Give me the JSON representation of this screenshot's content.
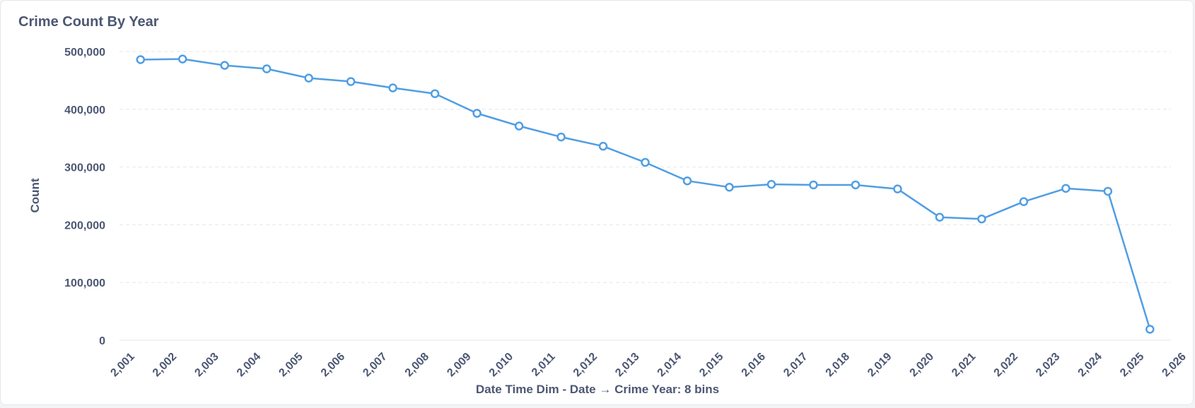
{
  "card": {
    "title": "Crime Count By Year"
  },
  "colors": {
    "series": "#509ee3",
    "grid": "#e4e6ea",
    "text": "#4c5773",
    "point_fill": "#ffffff"
  },
  "chart_data": {
    "type": "line",
    "title": "Crime Count By Year",
    "xlabel": "Date Time Dim - Date → Crime Year: 8 bins",
    "ylabel": "Count",
    "x_tick_labels": [
      "2,001",
      "2,002",
      "2,003",
      "2,004",
      "2,005",
      "2,006",
      "2,007",
      "2,008",
      "2,009",
      "2,010",
      "2,011",
      "2,012",
      "2,013",
      "2,014",
      "2,015",
      "2,016",
      "2,017",
      "2,018",
      "2,019",
      "2,020",
      "2,021",
      "2,022",
      "2,023",
      "2,024",
      "2,025",
      "2,026"
    ],
    "y_ticks": [
      0,
      100000,
      200000,
      300000,
      400000,
      500000
    ],
    "y_tick_labels": [
      "0",
      "100,000",
      "200,000",
      "300,000",
      "400,000",
      "500,000"
    ],
    "ylim": [
      0,
      500000
    ],
    "xlim": [
      2001,
      2026
    ],
    "grid": true,
    "legend": "none",
    "series": [
      {
        "x": [
          2001.5,
          2002.5,
          2003.5,
          2004.5,
          2005.5,
          2006.5,
          2007.5,
          2008.5,
          2009.5,
          2010.5,
          2011.5,
          2012.5,
          2013.5,
          2014.5,
          2015.5,
          2016.5,
          2017.5,
          2018.5,
          2019.5,
          2020.5,
          2021.5,
          2022.5,
          2023.5,
          2024.5,
          2025.5
        ],
        "values": [
          486000,
          487000,
          476000,
          470000,
          454000,
          448000,
          437000,
          427000,
          393000,
          371000,
          352000,
          336000,
          308000,
          276000,
          265000,
          270000,
          269000,
          269000,
          262000,
          213000,
          210000,
          240000,
          263000,
          258000,
          19000
        ]
      }
    ]
  }
}
